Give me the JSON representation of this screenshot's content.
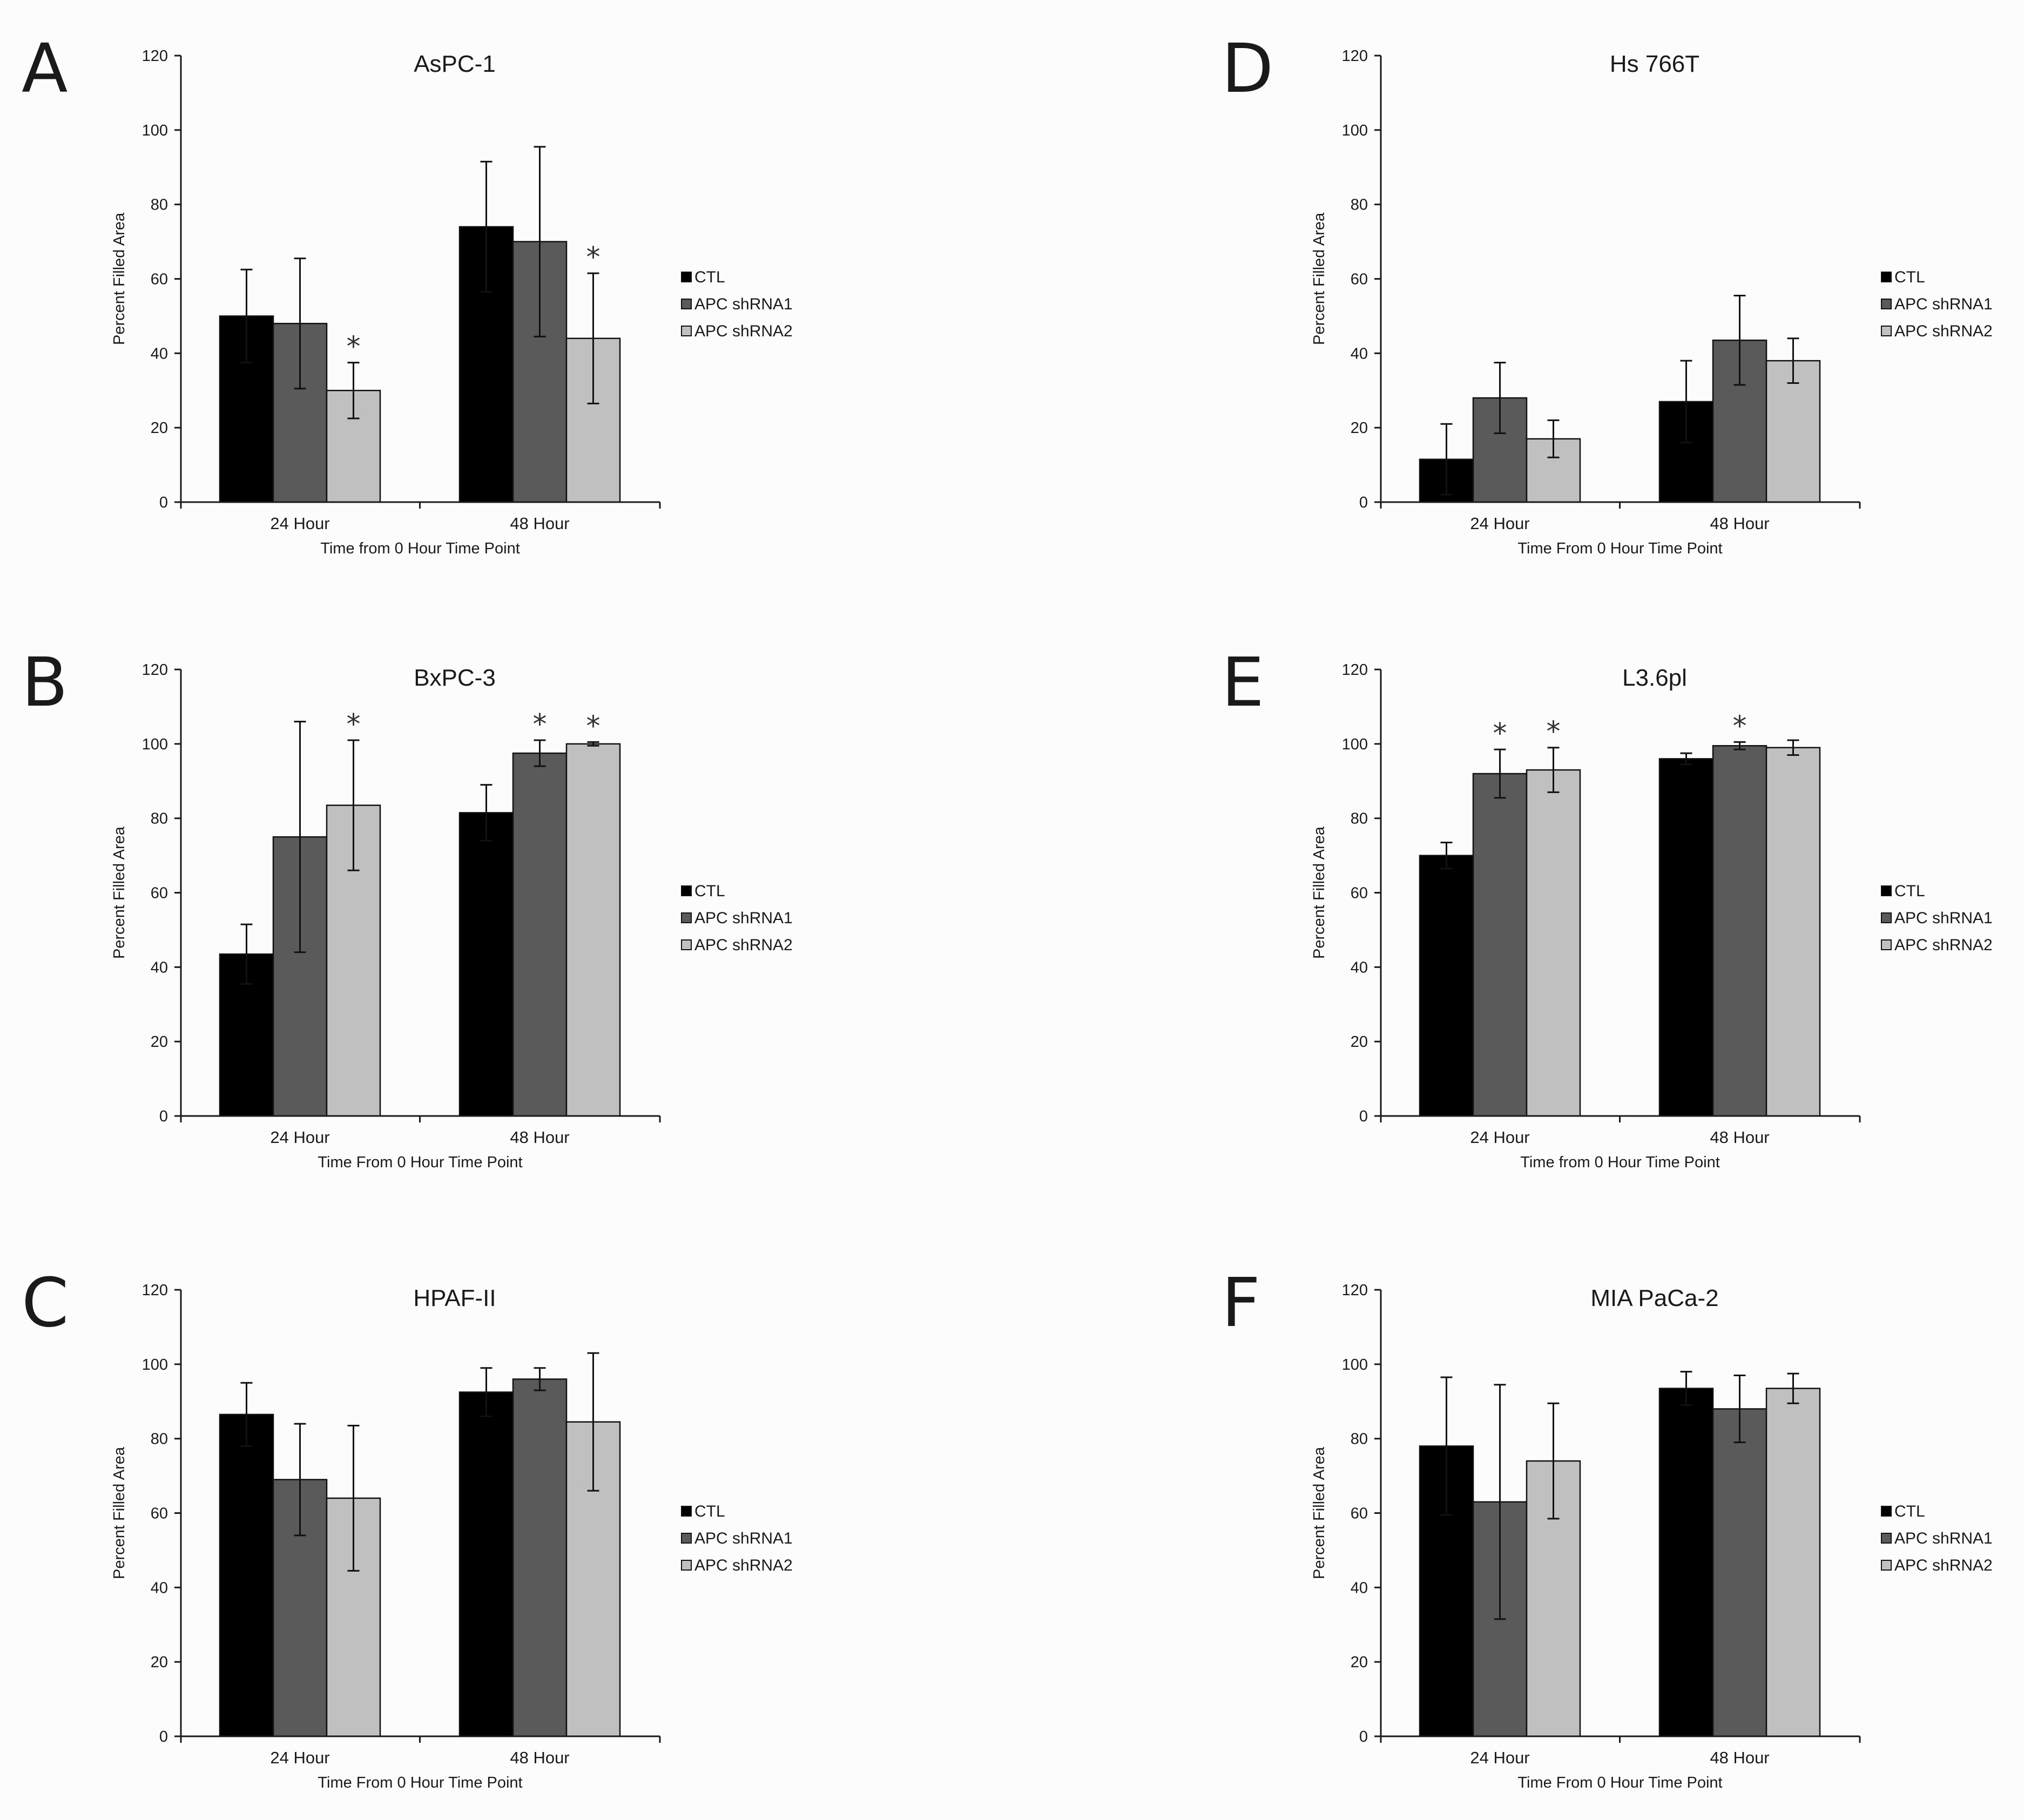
{
  "figure": {
    "series_colors": [
      "#000000",
      "#5a5a5a",
      "#c0c0c0"
    ],
    "axis_color": "#1a1a1a"
  },
  "chart_data": [
    {
      "panel": "A",
      "type": "bar",
      "title": "AsPC-1",
      "xlabel": "Time from 0 Hour Time Point",
      "ylabel": "Percent Filled Area",
      "ylim": [
        0,
        120
      ],
      "yticks": [
        0,
        20,
        40,
        60,
        80,
        100,
        120
      ],
      "categories": [
        "24 Hour",
        "48 Hour"
      ],
      "legend_position": "right",
      "series": [
        {
          "name": "CTL",
          "values": [
            50,
            74
          ],
          "errors": [
            12.5,
            17.5
          ],
          "significant": [
            false,
            false
          ]
        },
        {
          "name": "APC shRNA1",
          "values": [
            48,
            70
          ],
          "errors": [
            17.5,
            25.5
          ],
          "significant": [
            false,
            false
          ]
        },
        {
          "name": "APC shRNA2",
          "values": [
            30,
            44
          ],
          "errors": [
            7.5,
            17.5
          ],
          "significant": [
            true,
            true
          ]
        }
      ],
      "significance_symbol": "*"
    },
    {
      "panel": "B",
      "type": "bar",
      "title": "BxPC-3",
      "xlabel": "Time From 0 Hour Time Point",
      "ylabel": "Percent Filled Area",
      "ylim": [
        0,
        120
      ],
      "yticks": [
        0,
        20,
        40,
        60,
        80,
        100,
        120
      ],
      "categories": [
        "24 Hour",
        "48 Hour"
      ],
      "legend_position": "right",
      "series": [
        {
          "name": "CTL",
          "values": [
            43.5,
            81.5
          ],
          "errors": [
            8,
            7.5
          ],
          "significant": [
            false,
            false
          ]
        },
        {
          "name": "APC shRNA1",
          "values": [
            75,
            97.5
          ],
          "errors": [
            31,
            3.5
          ],
          "significant": [
            false,
            true
          ]
        },
        {
          "name": "APC shRNA2",
          "values": [
            83.5,
            100
          ],
          "errors": [
            17.5,
            0.5
          ],
          "significant": [
            true,
            true
          ]
        }
      ],
      "significance_symbol": "*"
    },
    {
      "panel": "C",
      "type": "bar",
      "title": "HPAF-II",
      "xlabel": "Time From 0 Hour Time Point",
      "ylabel": "Percent Filled Area",
      "ylim": [
        0,
        120
      ],
      "yticks": [
        0,
        20,
        40,
        60,
        80,
        100,
        120
      ],
      "categories": [
        "24 Hour",
        "48 Hour"
      ],
      "legend_position": "right",
      "series": [
        {
          "name": "CTL",
          "values": [
            86.5,
            92.5
          ],
          "errors": [
            8.5,
            6.5
          ],
          "significant": [
            false,
            false
          ]
        },
        {
          "name": "APC shRNA1",
          "values": [
            69,
            96
          ],
          "errors": [
            15,
            3
          ],
          "significant": [
            false,
            false
          ]
        },
        {
          "name": "APC shRNA2",
          "values": [
            64,
            84.5
          ],
          "errors": [
            19.5,
            18.5
          ],
          "significant": [
            false,
            false
          ]
        }
      ],
      "significance_symbol": "*"
    },
    {
      "panel": "D",
      "type": "bar",
      "title": "Hs 766T",
      "xlabel": "Time From 0 Hour Time Point",
      "ylabel": "Percent Filled Area",
      "ylim": [
        0,
        120
      ],
      "yticks": [
        0,
        20,
        40,
        60,
        80,
        100,
        120
      ],
      "categories": [
        "24 Hour",
        "48 Hour"
      ],
      "legend_position": "right",
      "series": [
        {
          "name": "CTL",
          "values": [
            11.5,
            27
          ],
          "errors": [
            9.5,
            11
          ],
          "significant": [
            false,
            false
          ]
        },
        {
          "name": "APC shRNA1",
          "values": [
            28,
            43.5
          ],
          "errors": [
            9.5,
            12
          ],
          "significant": [
            false,
            false
          ]
        },
        {
          "name": "APC shRNA2",
          "values": [
            17,
            38
          ],
          "errors": [
            5,
            6
          ],
          "significant": [
            false,
            false
          ]
        }
      ],
      "significance_symbol": "*"
    },
    {
      "panel": "E",
      "type": "bar",
      "title": "L3.6pl",
      "xlabel": "Time from 0 Hour Time Point",
      "ylabel": "Percent Filled Area",
      "ylim": [
        0,
        120
      ],
      "yticks": [
        0,
        20,
        40,
        60,
        80,
        100,
        120
      ],
      "categories": [
        "24 Hour",
        "48 Hour"
      ],
      "legend_position": "right",
      "series": [
        {
          "name": "CTL",
          "values": [
            70,
            96
          ],
          "errors": [
            3.5,
            1.5
          ],
          "significant": [
            false,
            false
          ]
        },
        {
          "name": "APC shRNA1",
          "values": [
            92,
            99.5
          ],
          "errors": [
            6.5,
            1
          ],
          "significant": [
            true,
            true
          ]
        },
        {
          "name": "APC shRNA2",
          "values": [
            93,
            99
          ],
          "errors": [
            6,
            2
          ],
          "significant": [
            true,
            false
          ]
        }
      ],
      "significance_symbol": "*"
    },
    {
      "panel": "F",
      "type": "bar",
      "title": "MIA PaCa-2",
      "xlabel": "Time From 0 Hour Time Point",
      "ylabel": "Percent Filled Area",
      "ylim": [
        0,
        120
      ],
      "yticks": [
        0,
        20,
        40,
        60,
        80,
        100,
        120
      ],
      "categories": [
        "24 Hour",
        "48 Hour"
      ],
      "legend_position": "right",
      "series": [
        {
          "name": "CTL",
          "values": [
            78,
            93.5
          ],
          "errors": [
            18.5,
            4.5
          ],
          "significant": [
            false,
            false
          ]
        },
        {
          "name": "APC shRNA1",
          "values": [
            63,
            88
          ],
          "errors": [
            31.5,
            9
          ],
          "significant": [
            false,
            false
          ]
        },
        {
          "name": "APC shRNA2",
          "values": [
            74,
            93.5
          ],
          "errors": [
            15.5,
            4
          ],
          "significant": [
            false,
            false
          ]
        }
      ],
      "significance_symbol": "*"
    }
  ]
}
